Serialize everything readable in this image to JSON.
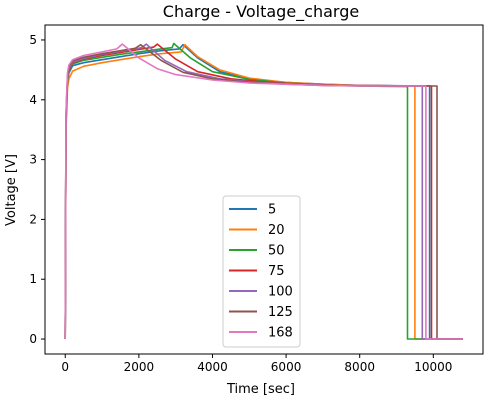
{
  "chart_data": {
    "type": "line",
    "title": "Charge - Voltage_charge",
    "xlabel": "Time [sec]",
    "ylabel": "Voltage [V]",
    "xlim": [
      -550,
      11350
    ],
    "ylim": [
      -0.25,
      5.25
    ],
    "xticks": [
      0,
      2000,
      4000,
      6000,
      8000,
      10000
    ],
    "yticks": [
      0,
      1,
      2,
      3,
      4,
      5
    ],
    "xtick_labels": [
      "0",
      "2000",
      "4000",
      "6000",
      "8000",
      "10000"
    ],
    "ytick_labels": [
      "0",
      "1",
      "2",
      "3",
      "4",
      "5"
    ],
    "grid": false,
    "legend_position": "lower-center",
    "series": [
      {
        "name": "5",
        "color": "#1f77b4",
        "points": [
          [
            0,
            0
          ],
          [
            20,
            3.6
          ],
          [
            60,
            4.3
          ],
          [
            100,
            4.45
          ],
          [
            200,
            4.57
          ],
          [
            500,
            4.62
          ],
          [
            1000,
            4.67
          ],
          [
            1500,
            4.72
          ],
          [
            2000,
            4.77
          ],
          [
            2600,
            4.82
          ],
          [
            3100,
            4.85
          ],
          [
            3200,
            4.92
          ],
          [
            3600,
            4.7
          ],
          [
            4200,
            4.47
          ],
          [
            5000,
            4.35
          ],
          [
            6000,
            4.29
          ],
          [
            7000,
            4.26
          ],
          [
            8000,
            4.24
          ],
          [
            9900,
            4.23
          ],
          [
            9900,
            0
          ],
          [
            10800,
            0
          ]
        ]
      },
      {
        "name": "20",
        "color": "#ff7f0e",
        "points": [
          [
            0,
            0
          ],
          [
            20,
            3.5
          ],
          [
            60,
            4.2
          ],
          [
            100,
            4.35
          ],
          [
            200,
            4.48
          ],
          [
            500,
            4.56
          ],
          [
            1000,
            4.62
          ],
          [
            1500,
            4.67
          ],
          [
            2000,
            4.72
          ],
          [
            2600,
            4.77
          ],
          [
            3150,
            4.8
          ],
          [
            3250,
            4.92
          ],
          [
            3600,
            4.72
          ],
          [
            4200,
            4.5
          ],
          [
            5000,
            4.36
          ],
          [
            6000,
            4.29
          ],
          [
            7000,
            4.26
          ],
          [
            8000,
            4.24
          ],
          [
            9500,
            4.23
          ],
          [
            9500,
            0
          ],
          [
            10800,
            0
          ]
        ]
      },
      {
        "name": "50",
        "color": "#2ca02c",
        "points": [
          [
            0,
            0
          ],
          [
            20,
            3.6
          ],
          [
            60,
            4.3
          ],
          [
            100,
            4.48
          ],
          [
            200,
            4.6
          ],
          [
            500,
            4.66
          ],
          [
            1000,
            4.71
          ],
          [
            1500,
            4.76
          ],
          [
            2000,
            4.8
          ],
          [
            2600,
            4.85
          ],
          [
            2900,
            4.87
          ],
          [
            2950,
            4.94
          ],
          [
            3400,
            4.7
          ],
          [
            4000,
            4.47
          ],
          [
            5000,
            4.34
          ],
          [
            6000,
            4.28
          ],
          [
            7000,
            4.25
          ],
          [
            8000,
            4.23
          ],
          [
            9300,
            4.22
          ],
          [
            9300,
            0
          ],
          [
            10800,
            0
          ]
        ]
      },
      {
        "name": "75",
        "color": "#d62728",
        "points": [
          [
            0,
            0
          ],
          [
            20,
            3.7
          ],
          [
            60,
            4.35
          ],
          [
            100,
            4.5
          ],
          [
            200,
            4.62
          ],
          [
            500,
            4.68
          ],
          [
            1000,
            4.74
          ],
          [
            1500,
            4.79
          ],
          [
            2000,
            4.84
          ],
          [
            2400,
            4.88
          ],
          [
            2500,
            4.93
          ],
          [
            3000,
            4.68
          ],
          [
            3600,
            4.47
          ],
          [
            4500,
            4.35
          ],
          [
            5500,
            4.29
          ],
          [
            6500,
            4.26
          ],
          [
            7500,
            4.24
          ],
          [
            9950,
            4.23
          ],
          [
            9950,
            0
          ],
          [
            10800,
            0
          ]
        ]
      },
      {
        "name": "100",
        "color": "#9467bd",
        "points": [
          [
            0,
            0
          ],
          [
            20,
            3.7
          ],
          [
            60,
            4.35
          ],
          [
            100,
            4.52
          ],
          [
            200,
            4.63
          ],
          [
            500,
            4.69
          ],
          [
            1000,
            4.76
          ],
          [
            1500,
            4.81
          ],
          [
            2000,
            4.86
          ],
          [
            2100,
            4.88
          ],
          [
            2200,
            4.93
          ],
          [
            2700,
            4.66
          ],
          [
            3300,
            4.47
          ],
          [
            4200,
            4.35
          ],
          [
            5200,
            4.29
          ],
          [
            6200,
            4.26
          ],
          [
            7200,
            4.24
          ],
          [
            9700,
            4.23
          ],
          [
            9700,
            0
          ],
          [
            10800,
            0
          ]
        ]
      },
      {
        "name": "125",
        "color": "#8c564b",
        "points": [
          [
            0,
            0
          ],
          [
            20,
            3.75
          ],
          [
            60,
            4.4
          ],
          [
            100,
            4.55
          ],
          [
            200,
            4.65
          ],
          [
            500,
            4.71
          ],
          [
            1000,
            4.77
          ],
          [
            1500,
            4.82
          ],
          [
            1900,
            4.86
          ],
          [
            2050,
            4.92
          ],
          [
            2600,
            4.66
          ],
          [
            3200,
            4.46
          ],
          [
            4000,
            4.35
          ],
          [
            5000,
            4.29
          ],
          [
            6000,
            4.26
          ],
          [
            7000,
            4.24
          ],
          [
            8000,
            4.23
          ],
          [
            10100,
            4.23
          ],
          [
            10100,
            0
          ],
          [
            10800,
            0
          ]
        ]
      },
      {
        "name": "168",
        "color": "#e377c2",
        "points": [
          [
            0,
            0
          ],
          [
            20,
            3.8
          ],
          [
            60,
            4.45
          ],
          [
            100,
            4.58
          ],
          [
            200,
            4.67
          ],
          [
            500,
            4.74
          ],
          [
            1000,
            4.8
          ],
          [
            1400,
            4.85
          ],
          [
            1550,
            4.93
          ],
          [
            2000,
            4.7
          ],
          [
            2500,
            4.52
          ],
          [
            3000,
            4.42
          ],
          [
            4000,
            4.33
          ],
          [
            5000,
            4.28
          ],
          [
            6000,
            4.26
          ],
          [
            7000,
            4.24
          ],
          [
            8000,
            4.23
          ],
          [
            9800,
            4.23
          ],
          [
            9800,
            0
          ],
          [
            10800,
            0
          ]
        ]
      }
    ]
  }
}
